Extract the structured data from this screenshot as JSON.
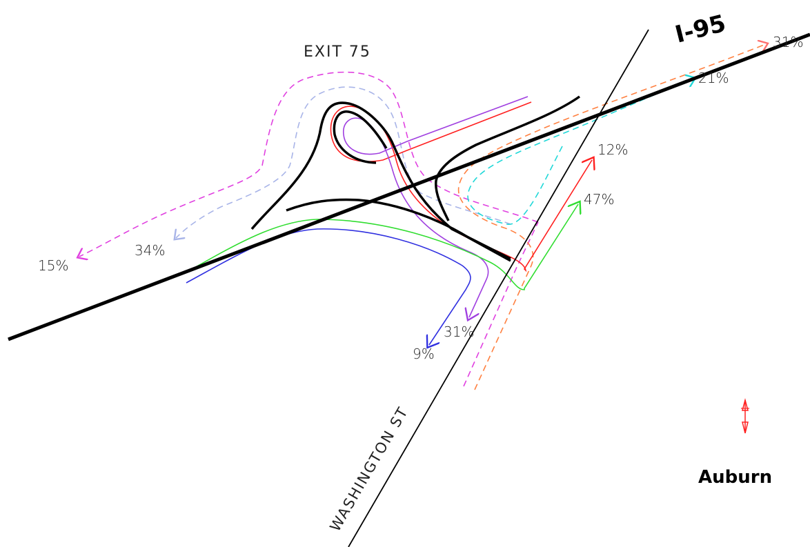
{
  "highway_label": "I-95",
  "exit_label": "EXIT 75",
  "street_label": "WASHINGTON ST",
  "town_label": "Auburn",
  "colors": {
    "road": "#000000",
    "magenta": "#e040e0",
    "lavender": "#a8b4e8",
    "red": "#ff2020",
    "purple": "#a040e0",
    "green": "#30dd30",
    "blue": "#3030e0",
    "orange": "#ff8040",
    "cyan": "#20d8d8",
    "salmon": "#ff7070",
    "north_arrow": "#ff2020"
  },
  "flows": [
    {
      "id": "sw-magenta",
      "label": "15%",
      "color": "magenta",
      "style": "dashed"
    },
    {
      "id": "sw-lavender",
      "label": "34%",
      "color": "lavender",
      "style": "dashed"
    },
    {
      "id": "ne-salmon",
      "label": "31%",
      "color": "salmon",
      "style": "dashed"
    },
    {
      "id": "ne-cyan",
      "label": "21%",
      "color": "cyan",
      "style": "dashed"
    },
    {
      "id": "wash-red",
      "label": "12%",
      "color": "red",
      "style": "solid"
    },
    {
      "id": "wash-green",
      "label": "47%",
      "color": "green",
      "style": "solid"
    },
    {
      "id": "south-purple",
      "label": "31%",
      "color": "purple",
      "style": "solid"
    },
    {
      "id": "south-blue",
      "label": "9%",
      "color": "blue",
      "style": "solid"
    }
  ],
  "north_arrow_icon": "north-arrow-icon"
}
